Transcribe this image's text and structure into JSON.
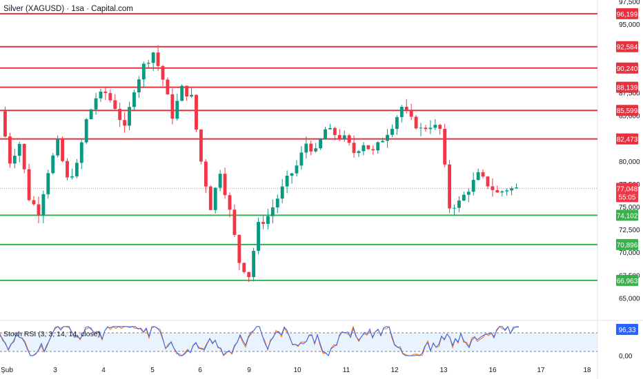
{
  "header": {
    "title": "Silver (XAGUSD) · 1sa · Capital.com"
  },
  "stoch": {
    "label": "Stoch RSI (3, 3, 14, 14, close)",
    "value_badge": "96,33",
    "ticks": [
      "0,00"
    ]
  },
  "colors": {
    "up": "#089981",
    "down": "#f23645",
    "resistance": "#e5313e",
    "support": "#36b24a",
    "stoch_k": "#2962ff",
    "stoch_d": "#ff6d00",
    "current": "#f23645"
  },
  "chart_data": {
    "type": "candlestick",
    "x_labels": [
      "Şub",
      "3",
      "4",
      "5",
      "6",
      "9",
      "10",
      "11",
      "12",
      "13",
      "16",
      "17",
      "18"
    ],
    "y_range": [
      62800,
      97700
    ],
    "y_ticks": [
      "97,500",
      "95,000",
      "87,500",
      "85,000",
      "80,000",
      "77,500",
      "75,000",
      "72,500",
      "70,000",
      "67,500",
      "65,000"
    ],
    "resistance_levels": [
      {
        "value": 96199,
        "label": "96,199"
      },
      {
        "value": 92584,
        "label": "92,584"
      },
      {
        "value": 90240,
        "label": "90,240"
      },
      {
        "value": 88139,
        "label": "88,139"
      },
      {
        "value": 85599,
        "label": "85,599"
      },
      {
        "value": 82473,
        "label": "82,473"
      }
    ],
    "support_levels": [
      {
        "value": 74102,
        "label": "74,102"
      },
      {
        "value": 70896,
        "label": "70,896"
      },
      {
        "value": 66963,
        "label": "66,963"
      }
    ],
    "current_price": {
      "value": 77048,
      "label": "77,048",
      "countdown": "55:05"
    },
    "price_path": [
      [
        0,
        85500
      ],
      [
        2,
        80000
      ],
      [
        4,
        82000
      ],
      [
        6,
        76000
      ],
      [
        8,
        74500
      ],
      [
        10,
        79000
      ],
      [
        12,
        82000
      ],
      [
        14,
        78000
      ],
      [
        16,
        79500
      ],
      [
        18,
        84500
      ],
      [
        20,
        87000
      ],
      [
        22,
        87500
      ],
      [
        24,
        86000
      ],
      [
        26,
        83500
      ],
      [
        28,
        88000
      ],
      [
        30,
        90500
      ],
      [
        32,
        92000
      ],
      [
        34,
        89000
      ],
      [
        36,
        85000
      ],
      [
        38,
        88000
      ],
      [
        40,
        87000
      ],
      [
        42,
        80000
      ],
      [
        44,
        75000
      ],
      [
        46,
        79000
      ],
      [
        48,
        74500
      ],
      [
        50,
        69000
      ],
      [
        52,
        67500
      ],
      [
        54,
        73000
      ],
      [
        56,
        74000
      ],
      [
        58,
        76000
      ],
      [
        60,
        78000
      ],
      [
        62,
        79500
      ],
      [
        64,
        82000
      ],
      [
        66,
        81000
      ],
      [
        68,
        83500
      ],
      [
        70,
        83000
      ],
      [
        72,
        82500
      ],
      [
        74,
        81000
      ],
      [
        76,
        82000
      ],
      [
        78,
        81000
      ],
      [
        80,
        82500
      ],
      [
        82,
        84000
      ],
      [
        84,
        86000
      ],
      [
        86,
        84500
      ],
      [
        88,
        83500
      ],
      [
        90,
        84000
      ],
      [
        92,
        83500
      ],
      [
        94,
        75000
      ],
      [
        96,
        75500
      ],
      [
        98,
        77000
      ],
      [
        100,
        78500
      ],
      [
        102,
        77500
      ],
      [
        104,
        76500
      ],
      [
        106,
        77000
      ],
      [
        108,
        77000
      ]
    ]
  }
}
